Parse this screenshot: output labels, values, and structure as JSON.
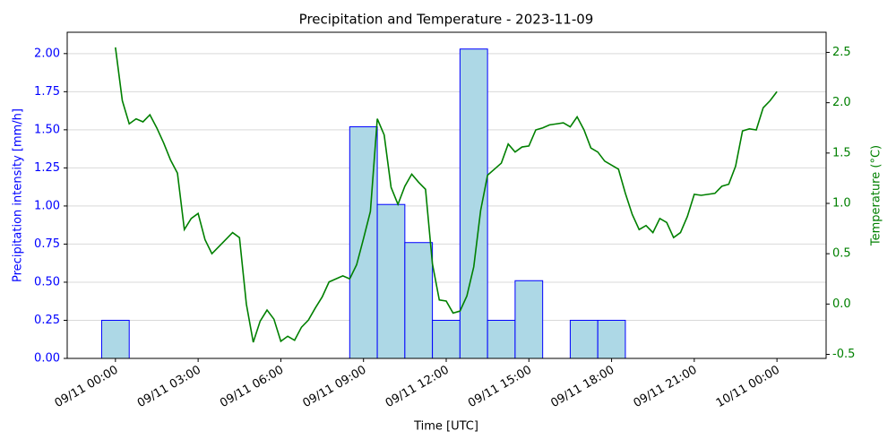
{
  "chart_data": {
    "type": "bar",
    "title": "Precipitation and Temperature - 2023-11-09",
    "xlabel": "Time [UTC]",
    "ylabel": "Precipitation intensity [mm/h]",
    "y2label": "Temperature (°C)",
    "xlim": [
      "08/11 22:15",
      "10/11 01:47"
    ],
    "xticks": [
      "09/11 00:00",
      "09/11 03:00",
      "09/11 06:00",
      "09/11 09:00",
      "09/11 12:00",
      "09/11 15:00",
      "09/11 18:00",
      "09/11 21:00",
      "10/11 00:00"
    ],
    "ylim": [
      0,
      2.14
    ],
    "yticks": [
      {
        "value": 0,
        "label": "0.00"
      },
      {
        "value": 0.25,
        "label": "0.25"
      },
      {
        "value": 0.5,
        "label": "0.50"
      },
      {
        "value": 0.75,
        "label": "0.75"
      },
      {
        "value": 1,
        "label": "1.00"
      },
      {
        "value": 1.25,
        "label": "1.25"
      },
      {
        "value": 1.5,
        "label": "1.50"
      },
      {
        "value": 1.75,
        "label": "1.75"
      },
      {
        "value": 2,
        "label": "2.00"
      }
    ],
    "y2lim": [
      -0.54,
      2.7
    ],
    "y2ticks": [
      -0.5,
      {
        "value": 0,
        "label": "0.0"
      },
      0.5,
      {
        "value": 1,
        "label": "1.0"
      },
      1.5,
      {
        "value": 2,
        "label": "2.0"
      },
      2.5
    ],
    "grid": true,
    "series": [
      {
        "type": "bar",
        "color": "lightblue",
        "edgecolor": "blue",
        "x": [
          "09/11 00:00",
          "09/11 09:00",
          "09/11 10:00",
          "09/11 11:00",
          "09/11 12:00",
          "09/11 13:00",
          "09/11 14:00",
          "09/11 15:00",
          "09/11 17:00",
          "09/11 18:00"
        ],
        "values": [
          0.25,
          1.52,
          1.01,
          0.76,
          0.25,
          2.03,
          0.25,
          0.51,
          0.25,
          0.25
        ]
      },
      {
        "type": "line",
        "color": "green",
        "axis": "y2",
        "x": [
          "09/11 00:00",
          "09/11 00:15",
          "09/11 00:30",
          "09/11 00:45",
          "09/11 01:00",
          "09/11 01:15",
          "09/11 01:30",
          "09/11 01:45",
          "09/11 02:00",
          "09/11 02:15",
          "09/11 02:30",
          "09/11 02:45",
          "09/11 03:00",
          "09/11 03:15",
          "09/11 03:30",
          "09/11 03:45",
          "09/11 04:00",
          "09/11 04:15",
          "09/11 04:30",
          "09/11 04:45",
          "09/11 05:00",
          "09/11 05:15",
          "09/11 05:30",
          "09/11 05:45",
          "09/11 06:00",
          "09/11 06:15",
          "09/11 06:30",
          "09/11 06:45",
          "09/11 07:00",
          "09/11 07:15",
          "09/11 07:30",
          "09/11 07:45",
          "09/11 08:00",
          "09/11 08:15",
          "09/11 08:30",
          "09/11 08:45",
          "09/11 09:00",
          "09/11 09:15",
          "09/11 09:30",
          "09/11 09:45",
          "09/11 10:00",
          "09/11 10:15",
          "09/11 10:30",
          "09/11 10:45",
          "09/11 11:00",
          "09/11 11:15",
          "09/11 11:30",
          "09/11 11:45",
          "09/11 12:00",
          "09/11 12:15",
          "09/11 12:30",
          "09/11 12:45",
          "09/11 13:00",
          "09/11 13:15",
          "09/11 13:30",
          "09/11 13:45",
          "09/11 14:00",
          "09/11 14:15",
          "09/11 14:30",
          "09/11 14:45",
          "09/11 15:00",
          "09/11 15:15",
          "09/11 15:30",
          "09/11 15:45",
          "09/11 16:00",
          "09/11 16:15",
          "09/11 16:30",
          "09/11 16:45",
          "09/11 17:00",
          "09/11 17:15",
          "09/11 17:30",
          "09/11 17:45",
          "09/11 18:00",
          "09/11 18:15",
          "09/11 18:30",
          "09/11 18:45",
          "09/11 19:00",
          "09/11 19:15",
          "09/11 19:30",
          "09/11 19:45",
          "09/11 20:00",
          "09/11 20:15",
          "09/11 20:30",
          "09/11 20:45",
          "09/11 21:00",
          "09/11 21:15",
          "09/11 21:30",
          "09/11 21:45",
          "09/11 22:00",
          "09/11 22:15",
          "09/11 22:30",
          "09/11 22:45",
          "09/11 23:00",
          "09/11 23:15",
          "09/11 23:30",
          "09/11 23:45",
          "10/11 00:00"
        ],
        "values": [
          2.55,
          2.02,
          1.79,
          1.84,
          1.81,
          1.88,
          1.75,
          1.6,
          1.43,
          1.3,
          0.74,
          0.85,
          0.9,
          0.64,
          0.5,
          0.57,
          0.64,
          0.71,
          0.66,
          0,
          -0.38,
          -0.17,
          -0.06,
          -0.15,
          -0.37,
          -0.32,
          -0.36,
          -0.23,
          -0.16,
          -0.04,
          0.07,
          0.22,
          0.25,
          0.28,
          0.25,
          0.39,
          0.65,
          0.92,
          1.84,
          1.68,
          1.16,
          0.99,
          1.17,
          1.29,
          1.21,
          1.14,
          0.4,
          0.04,
          0.03,
          -0.09,
          -0.07,
          0.08,
          0.37,
          0.93,
          1.28,
          1.34,
          1.4,
          1.59,
          1.51,
          1.56,
          1.57,
          1.73,
          1.75,
          1.78,
          1.79,
          1.8,
          1.76,
          1.86,
          1.73,
          1.55,
          1.51,
          1.42,
          1.38,
          1.34,
          1.1,
          0.89,
          0.74,
          0.78,
          0.71,
          0.85,
          0.81,
          0.66,
          0.71,
          0.87,
          1.09,
          1.08,
          1.09,
          1.1,
          1.17,
          1.19,
          1.37,
          1.72,
          1.74,
          1.73,
          1.95,
          2.02,
          2.11
        ]
      }
    ]
  }
}
